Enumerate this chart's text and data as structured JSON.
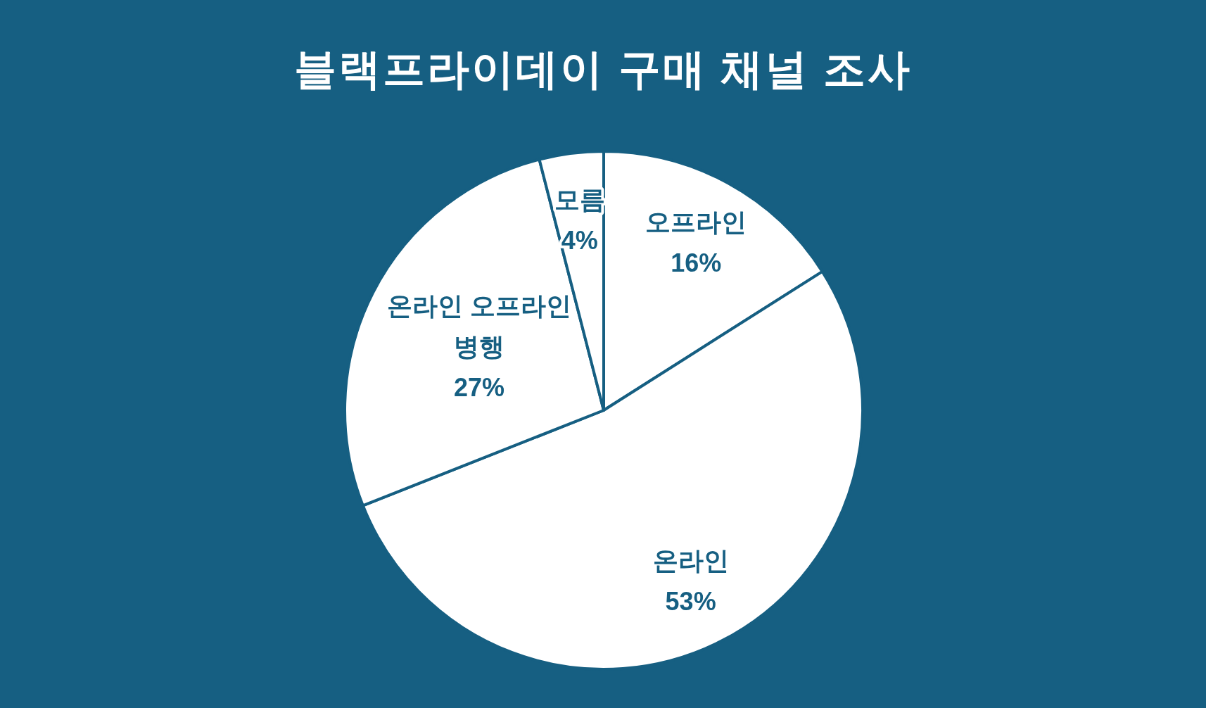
{
  "chart_data": {
    "type": "pie",
    "title": "블랙프라이데이 구매 채널 조사",
    "categories": [
      "오프라인",
      "온라인",
      "온라인 오프라인 병행",
      "모름"
    ],
    "values": [
      16,
      53,
      27,
      4
    ],
    "colors": [
      "#ffffff",
      "#ffffff",
      "#ffffff",
      "#ffffff"
    ],
    "value_labels": [
      "16%",
      "53%",
      "27%",
      "4%"
    ]
  }
}
